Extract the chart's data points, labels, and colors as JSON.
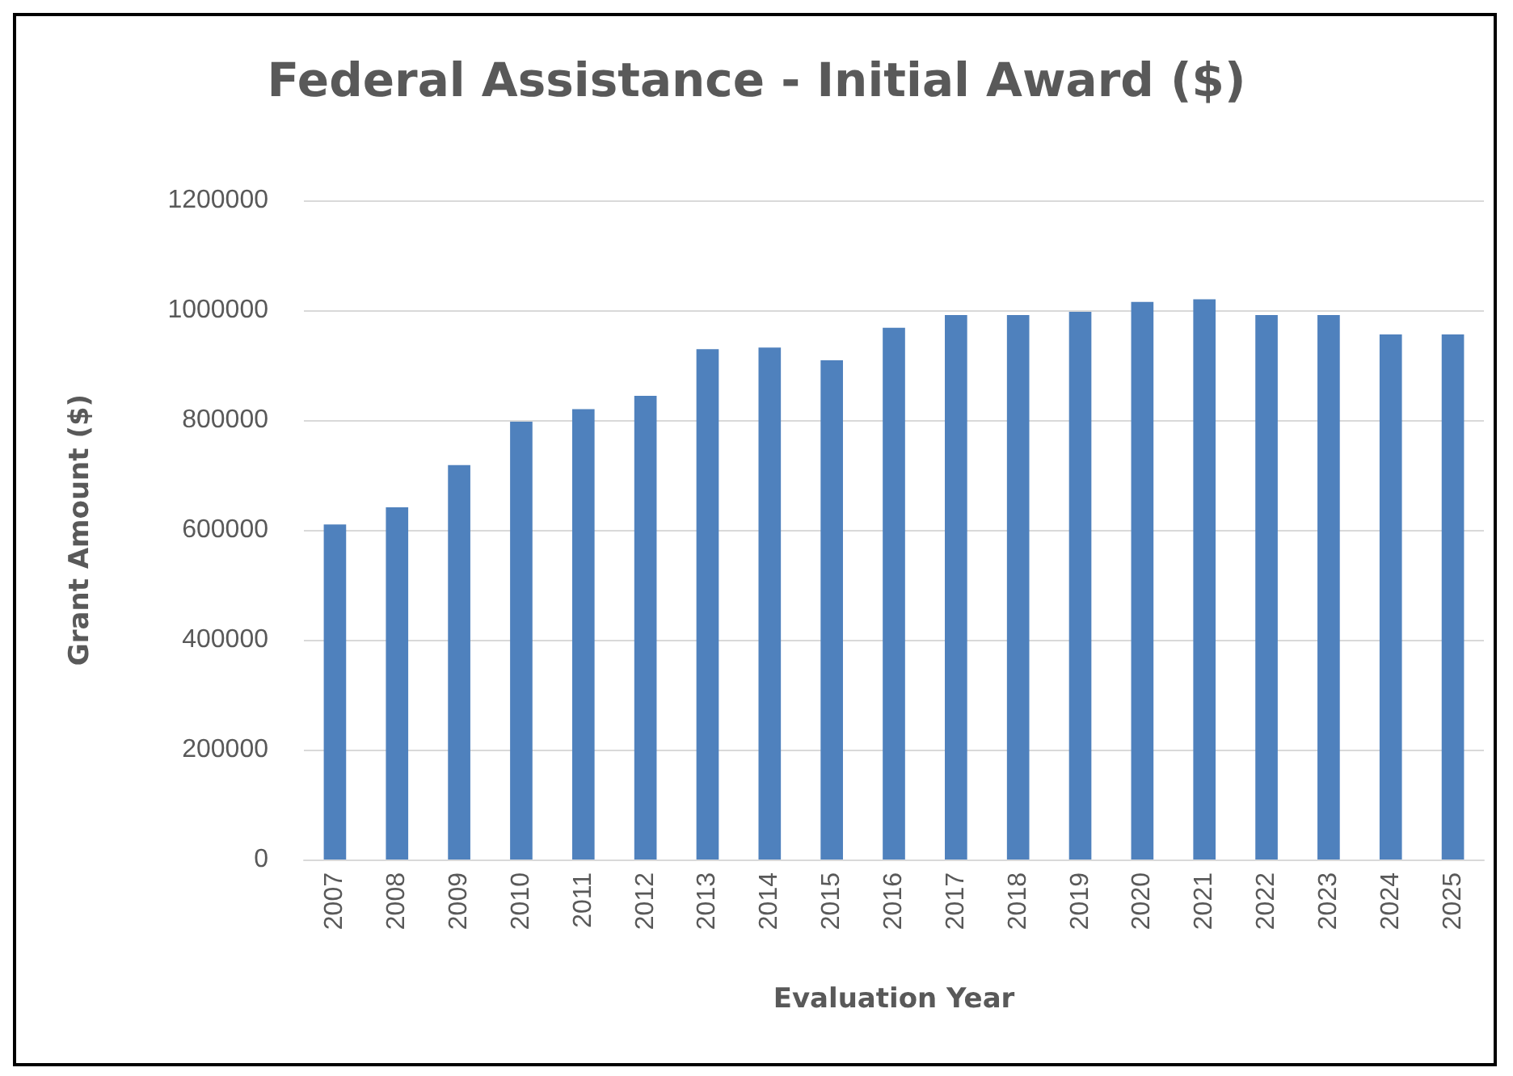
{
  "chart_data": {
    "type": "bar",
    "title": "Federal Assistance - Initial Award ($)",
    "xlabel": "Evaluation Year",
    "ylabel": "Grant Amount ($)",
    "categories": [
      "2007",
      "2008",
      "2009",
      "2010",
      "2011",
      "2012",
      "2013",
      "2014",
      "2015",
      "2016",
      "2017",
      "2018",
      "2019",
      "2020",
      "2021",
      "2022",
      "2023",
      "2024",
      "2025"
    ],
    "values": [
      610000,
      641000,
      718000,
      797000,
      820000,
      844000,
      929000,
      932000,
      909000,
      968000,
      991000,
      991000,
      997000,
      1015000,
      1020000,
      991000,
      991000,
      956000,
      956000
    ],
    "color": "#4f81bd",
    "ylim": [
      0,
      1200000
    ],
    "yticks": [
      0,
      200000,
      400000,
      600000,
      800000,
      1000000,
      1200000
    ],
    "grid": "y"
  }
}
